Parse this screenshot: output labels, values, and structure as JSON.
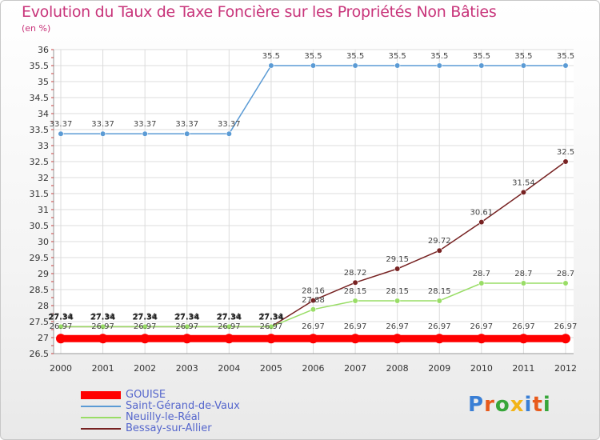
{
  "header": {
    "title": "Evolution du Taux de Taxe Foncière sur les Propriétés Non Bâties",
    "unit": "(en %)"
  },
  "chart_data": {
    "type": "line",
    "title": "Evolution du Taux de Taxe Foncière sur les Propriétés Non Bâties",
    "ylabel": "(en %)",
    "xlabel": "",
    "ylim": [
      26.5,
      36
    ],
    "yticks": [
      26.5,
      27,
      27.5,
      28,
      28.5,
      29,
      29.5,
      30,
      30.5,
      31,
      31.5,
      32,
      32.5,
      33,
      33.5,
      34,
      34.5,
      35,
      35.5,
      36
    ],
    "categories": [
      "2000",
      "2001",
      "2002",
      "2003",
      "2004",
      "2005",
      "2006",
      "2007",
      "2008",
      "2009",
      "2010",
      "2011",
      "2012"
    ],
    "series": [
      {
        "name": "GOUISE",
        "color": "#ff0000",
        "values": [
          26.97,
          26.97,
          26.97,
          26.97,
          26.97,
          26.97,
          26.97,
          26.97,
          26.97,
          26.97,
          26.97,
          26.97,
          26.97
        ]
      },
      {
        "name": "Saint-Gérand-de-Vaux",
        "color": "#5b9bd5",
        "values": [
          33.37,
          33.37,
          33.37,
          33.37,
          33.37,
          35.5,
          35.5,
          35.5,
          35.5,
          35.5,
          35.5,
          35.5,
          35.5
        ]
      },
      {
        "name": "Neuilly-le-Réal",
        "color": "#99dd66",
        "values": [
          27.34,
          27.34,
          27.34,
          27.34,
          27.34,
          27.34,
          27.88,
          28.15,
          28.15,
          28.15,
          28.7,
          28.7,
          28.7
        ]
      },
      {
        "name": "Bessay-sur-Allier",
        "color": "#772222",
        "values": [
          27.34,
          27.34,
          27.34,
          27.34,
          27.34,
          27.34,
          28.16,
          28.72,
          29.15,
          29.72,
          30.61,
          31.54,
          32.5
        ]
      }
    ]
  },
  "logo": {
    "text": "Proxiti",
    "colors": [
      "#3a7fd5",
      "#e85a1c",
      "#37a63a",
      "#f2b418",
      "#3a7fd5",
      "#e85a1c",
      "#37a63a"
    ]
  }
}
